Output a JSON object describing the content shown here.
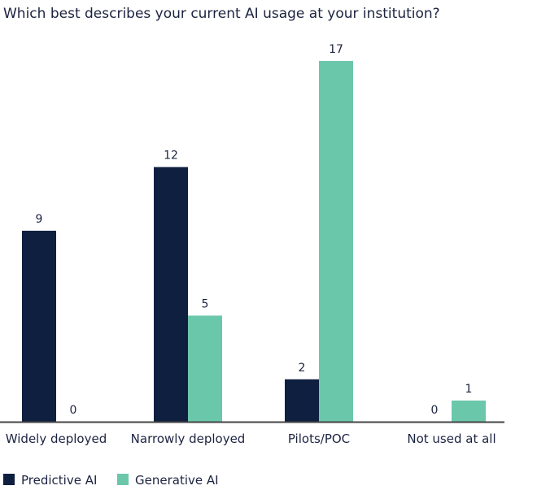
{
  "chart_data": {
    "type": "bar",
    "title": "Which best describes your current AI usage at your institution?",
    "xlabel": "",
    "ylabel": "",
    "ylim": [
      0,
      17
    ],
    "grid": false,
    "legend_position": "bottom-left",
    "categories": [
      "Widely deployed",
      "Narrowly deployed",
      "Pilots/POC",
      "Not used at all"
    ],
    "series": [
      {
        "name": "Predictive AI",
        "color": "#0e1f40",
        "values": [
          9,
          12,
          2,
          0
        ]
      },
      {
        "name": "Generative AI",
        "color": "#6bc7aa",
        "values": [
          0,
          5,
          17,
          1
        ]
      }
    ]
  }
}
